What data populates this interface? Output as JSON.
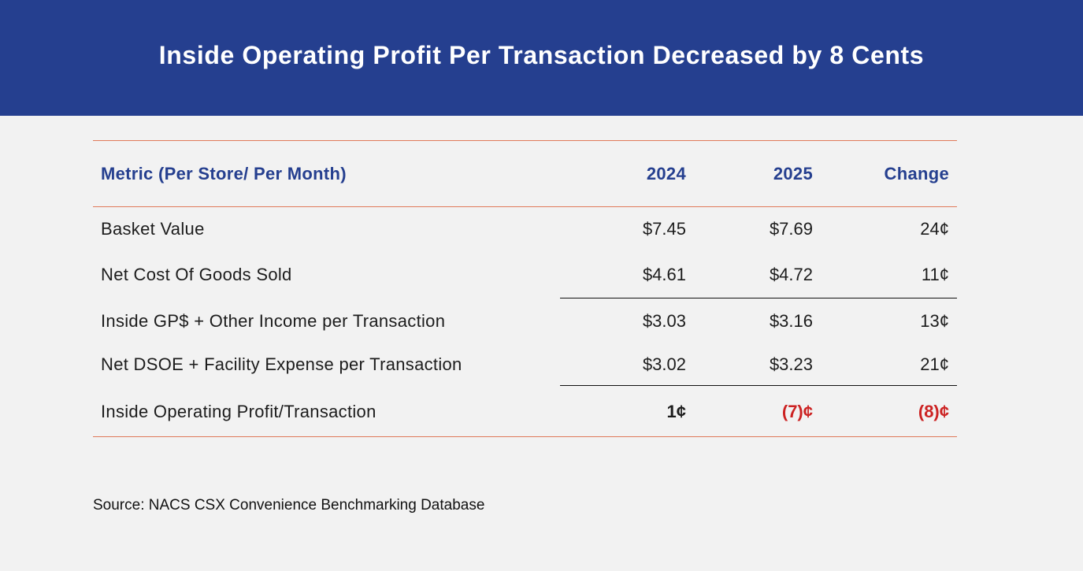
{
  "title": "Inside Operating Profit Per Transaction Decreased by 8 Cents",
  "source": "Source: NACS CSX Convenience Benchmarking Database",
  "colors": {
    "header_bg": "#253f8f",
    "header_text": "#253f8f",
    "negative": "#cc2222",
    "rule": "#e07a5a"
  },
  "chart_data": {
    "type": "table",
    "title": "Inside Operating Profit Per Transaction Decreased by 8 Cents",
    "columns": [
      "Metric (Per Store/ Per Month)",
      "2024",
      "2025",
      "Change"
    ],
    "rows": [
      [
        "Basket Value",
        "$7.45",
        "$7.69",
        "24¢"
      ],
      [
        "Net Cost Of Goods Sold",
        "$4.61",
        "$4.72",
        "11¢"
      ],
      [
        "Inside GP$ + Other Income per Transaction",
        "$3.03",
        "$3.16",
        "13¢"
      ],
      [
        "Net DSOE + Facility Expense per Transaction",
        "$3.02",
        "$3.23",
        "21¢"
      ],
      [
        "Inside Operating Profit/Transaction",
        "1¢",
        "(7)¢",
        "(8)¢"
      ]
    ]
  }
}
